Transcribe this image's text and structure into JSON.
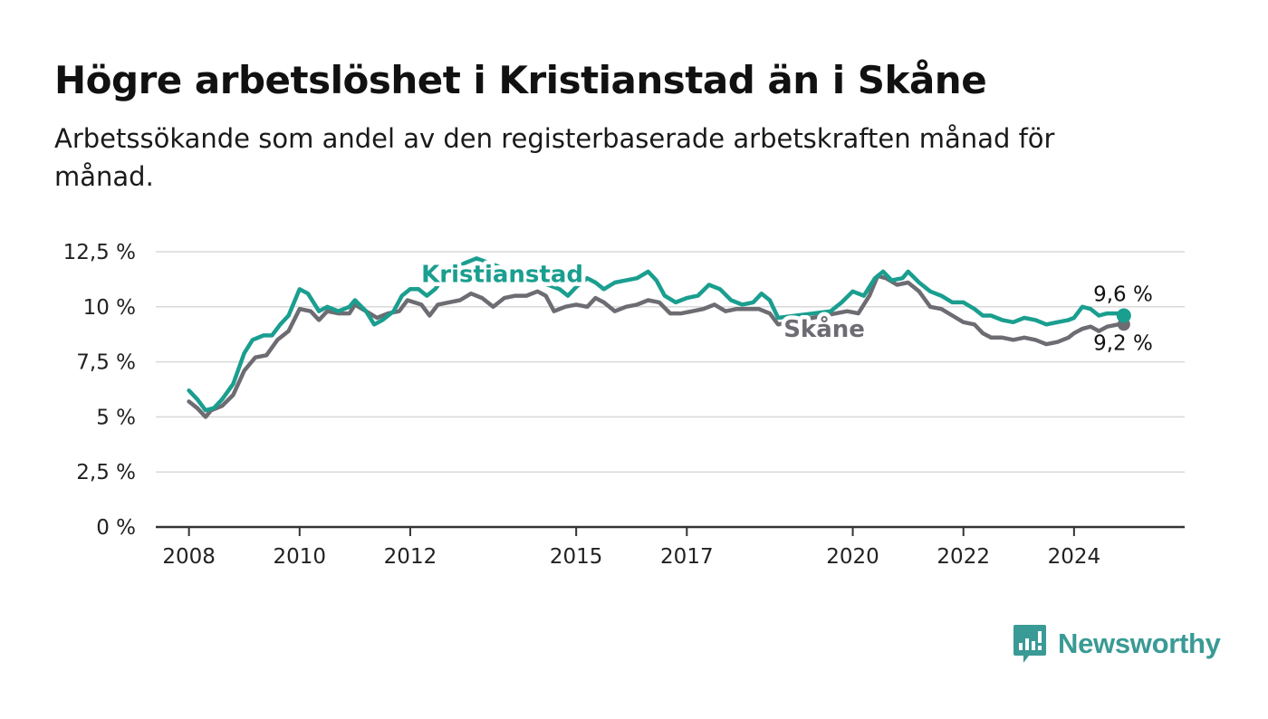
{
  "header": {
    "title": "Högre arbetslöshet i Kristianstad än i Skåne",
    "subtitle": "Arbetssökande som andel av den registerbaserade arbetskraften månad för månad."
  },
  "brand": {
    "name": "Newsworthy",
    "icon": "newsworthy-logo-icon",
    "color": "#3a9a95"
  },
  "chart_data": {
    "type": "line",
    "title": "Högre arbetslöshet i Kristianstad än i Skåne",
    "subtitle": "Arbetssökande som andel av den registerbaserade arbetskraften månad för månad.",
    "xlabel": "",
    "ylabel": "",
    "ylim": [
      0,
      12.5
    ],
    "xlim": [
      2007.4,
      2026.0
    ],
    "grid": true,
    "legend": "inline",
    "y_ticks": [
      0,
      2.5,
      5,
      7.5,
      10,
      12.5
    ],
    "y_tick_labels": [
      "0 %",
      "2,5 %",
      "5 %",
      "7,5 %",
      "10 %",
      "12,5 %"
    ],
    "x_ticks": [
      2008,
      2010,
      2012,
      2015,
      2017,
      2020,
      2022,
      2024
    ],
    "x_tick_labels": [
      "2008",
      "2010",
      "2012",
      "2015",
      "2017",
      "2020",
      "2022",
      "2024"
    ],
    "series": [
      {
        "name": "Skåne",
        "color": "#6d6c72",
        "end_label": "9,2 %",
        "points": [
          [
            2008.0,
            5.7
          ],
          [
            2008.15,
            5.4
          ],
          [
            2008.3,
            5.0
          ],
          [
            2008.4,
            5.3
          ],
          [
            2008.6,
            5.5
          ],
          [
            2008.8,
            6.0
          ],
          [
            2009.0,
            7.1
          ],
          [
            2009.2,
            7.7
          ],
          [
            2009.4,
            7.8
          ],
          [
            2009.6,
            8.5
          ],
          [
            2009.8,
            8.9
          ],
          [
            2010.0,
            9.9
          ],
          [
            2010.2,
            9.8
          ],
          [
            2010.35,
            9.4
          ],
          [
            2010.5,
            9.8
          ],
          [
            2010.7,
            9.7
          ],
          [
            2010.9,
            9.7
          ],
          [
            2011.0,
            10.1
          ],
          [
            2011.2,
            9.8
          ],
          [
            2011.4,
            9.5
          ],
          [
            2011.6,
            9.7
          ],
          [
            2011.8,
            9.8
          ],
          [
            2011.95,
            10.3
          ],
          [
            2012.2,
            10.1
          ],
          [
            2012.35,
            9.6
          ],
          [
            2012.5,
            10.1
          ],
          [
            2012.7,
            10.2
          ],
          [
            2012.9,
            10.3
          ],
          [
            2013.1,
            10.6
          ],
          [
            2013.3,
            10.4
          ],
          [
            2013.5,
            10.0
          ],
          [
            2013.7,
            10.4
          ],
          [
            2013.9,
            10.5
          ],
          [
            2014.1,
            10.5
          ],
          [
            2014.3,
            10.7
          ],
          [
            2014.45,
            10.5
          ],
          [
            2014.6,
            9.8
          ],
          [
            2014.8,
            10.0
          ],
          [
            2015.0,
            10.1
          ],
          [
            2015.2,
            10.0
          ],
          [
            2015.35,
            10.4
          ],
          [
            2015.5,
            10.2
          ],
          [
            2015.7,
            9.8
          ],
          [
            2015.9,
            10.0
          ],
          [
            2016.1,
            10.1
          ],
          [
            2016.3,
            10.3
          ],
          [
            2016.5,
            10.2
          ],
          [
            2016.7,
            9.7
          ],
          [
            2016.9,
            9.7
          ],
          [
            2017.1,
            9.8
          ],
          [
            2017.3,
            9.9
          ],
          [
            2017.5,
            10.1
          ],
          [
            2017.7,
            9.8
          ],
          [
            2017.9,
            9.9
          ],
          [
            2018.1,
            9.9
          ],
          [
            2018.3,
            9.9
          ],
          [
            2018.5,
            9.7
          ],
          [
            2018.65,
            9.2
          ],
          [
            2019.9,
            9.8
          ],
          [
            2020.1,
            9.7
          ],
          [
            2020.3,
            10.5
          ],
          [
            2020.45,
            11.4
          ],
          [
            2020.6,
            11.3
          ],
          [
            2020.8,
            11.0
          ],
          [
            2021.0,
            11.1
          ],
          [
            2021.2,
            10.7
          ],
          [
            2021.4,
            10.0
          ],
          [
            2021.6,
            9.9
          ],
          [
            2021.8,
            9.6
          ],
          [
            2022.0,
            9.3
          ],
          [
            2022.2,
            9.2
          ],
          [
            2022.35,
            8.8
          ],
          [
            2022.5,
            8.6
          ],
          [
            2022.7,
            8.6
          ],
          [
            2022.9,
            8.5
          ],
          [
            2023.1,
            8.6
          ],
          [
            2023.3,
            8.5
          ],
          [
            2023.5,
            8.3
          ],
          [
            2023.7,
            8.4
          ],
          [
            2023.9,
            8.6
          ],
          [
            2024.0,
            8.8
          ],
          [
            2024.15,
            9.0
          ],
          [
            2024.3,
            9.1
          ],
          [
            2024.45,
            8.9
          ],
          [
            2024.6,
            9.1
          ],
          [
            2024.8,
            9.2
          ],
          [
            2024.9,
            9.2
          ]
        ]
      },
      {
        "name": "Kristianstad",
        "color": "#1a9e8f",
        "end_label": "9,6 %",
        "points": [
          [
            2008.0,
            6.2
          ],
          [
            2008.15,
            5.8
          ],
          [
            2008.3,
            5.3
          ],
          [
            2008.45,
            5.4
          ],
          [
            2008.6,
            5.8
          ],
          [
            2008.8,
            6.5
          ],
          [
            2009.0,
            7.9
          ],
          [
            2009.15,
            8.5
          ],
          [
            2009.35,
            8.7
          ],
          [
            2009.5,
            8.7
          ],
          [
            2009.65,
            9.2
          ],
          [
            2009.8,
            9.6
          ],
          [
            2010.0,
            10.8
          ],
          [
            2010.15,
            10.6
          ],
          [
            2010.35,
            9.8
          ],
          [
            2010.5,
            10.0
          ],
          [
            2010.7,
            9.8
          ],
          [
            2010.9,
            10.0
          ],
          [
            2011.0,
            10.3
          ],
          [
            2011.2,
            9.8
          ],
          [
            2011.35,
            9.2
          ],
          [
            2011.5,
            9.4
          ],
          [
            2011.7,
            9.8
          ],
          [
            2011.85,
            10.5
          ],
          [
            2012.0,
            10.8
          ],
          [
            2012.15,
            10.8
          ],
          [
            2012.3,
            10.5
          ],
          [
            2012.45,
            10.8
          ],
          [
            2012.6,
            11.3
          ],
          [
            2012.75,
            11.7
          ],
          [
            2013.0,
            12.0
          ],
          [
            2013.2,
            12.2
          ],
          [
            2014.7,
            10.8
          ],
          [
            2014.85,
            10.5
          ],
          [
            2015.0,
            10.9
          ],
          [
            2015.2,
            11.3
          ],
          [
            2015.35,
            11.1
          ],
          [
            2015.5,
            10.8
          ],
          [
            2015.7,
            11.1
          ],
          [
            2015.9,
            11.2
          ],
          [
            2016.1,
            11.3
          ],
          [
            2016.3,
            11.6
          ],
          [
            2016.45,
            11.2
          ],
          [
            2016.6,
            10.5
          ],
          [
            2016.8,
            10.2
          ],
          [
            2017.0,
            10.4
          ],
          [
            2017.2,
            10.5
          ],
          [
            2017.4,
            11.0
          ],
          [
            2017.6,
            10.8
          ],
          [
            2017.8,
            10.3
          ],
          [
            2018.0,
            10.1
          ],
          [
            2018.2,
            10.2
          ],
          [
            2018.35,
            10.6
          ],
          [
            2018.5,
            10.3
          ],
          [
            2018.65,
            9.5
          ],
          [
            2019.6,
            9.8
          ],
          [
            2019.8,
            10.2
          ],
          [
            2020.0,
            10.7
          ],
          [
            2020.2,
            10.5
          ],
          [
            2020.4,
            11.3
          ],
          [
            2020.55,
            11.6
          ],
          [
            2020.7,
            11.2
          ],
          [
            2020.9,
            11.3
          ],
          [
            2021.0,
            11.6
          ],
          [
            2021.2,
            11.1
          ],
          [
            2021.4,
            10.7
          ],
          [
            2021.6,
            10.5
          ],
          [
            2021.8,
            10.2
          ],
          [
            2022.0,
            10.2
          ],
          [
            2022.2,
            9.9
          ],
          [
            2022.35,
            9.6
          ],
          [
            2022.5,
            9.6
          ],
          [
            2022.7,
            9.4
          ],
          [
            2022.9,
            9.3
          ],
          [
            2023.1,
            9.5
          ],
          [
            2023.3,
            9.4
          ],
          [
            2023.5,
            9.2
          ],
          [
            2023.7,
            9.3
          ],
          [
            2023.9,
            9.4
          ],
          [
            2024.0,
            9.5
          ],
          [
            2024.15,
            10.0
          ],
          [
            2024.3,
            9.9
          ],
          [
            2024.45,
            9.6
          ],
          [
            2024.6,
            9.7
          ],
          [
            2024.8,
            9.7
          ],
          [
            2024.9,
            9.6
          ]
        ]
      }
    ]
  }
}
